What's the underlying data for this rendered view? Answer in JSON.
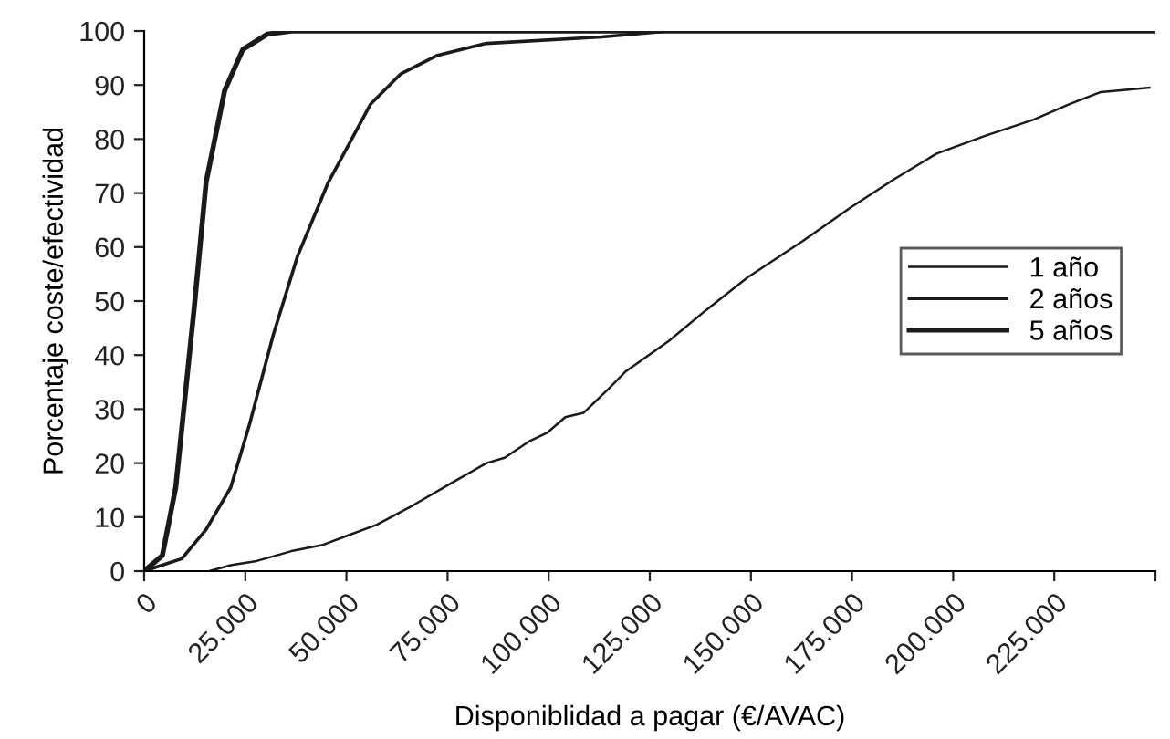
{
  "chart_data": {
    "type": "line",
    "xlabel": "Disponiblidad a pagar (€/AVAC)",
    "ylabel": "Porcentaje coste/efectividad",
    "xlim": [
      0,
      250000
    ],
    "ylim": [
      0,
      100
    ],
    "xticks": [
      {
        "value": 0,
        "label": "0"
      },
      {
        "value": 25000,
        "label": "25.000"
      },
      {
        "value": 50000,
        "label": "50.000"
      },
      {
        "value": 75000,
        "label": "75.000"
      },
      {
        "value": 100000,
        "label": "100.000"
      },
      {
        "value": 125000,
        "label": "125.000"
      },
      {
        "value": 150000,
        "label": "150.000"
      },
      {
        "value": 175000,
        "label": "175.000"
      },
      {
        "value": 200000,
        "label": "200.000"
      },
      {
        "value": 225000,
        "label": "225.000"
      },
      {
        "value": 250000,
        "label": null
      }
    ],
    "yticks": [
      0,
      10,
      20,
      30,
      40,
      50,
      60,
      70,
      80,
      90,
      100
    ],
    "grid": false,
    "legend": "right",
    "marker": "none",
    "line_style": "solid",
    "series": [
      {
        "name": "1 año",
        "color": "#1a1a1a",
        "x": [
          16100,
          21400,
          27400,
          36400,
          43900,
          50000,
          57500,
          66500,
          75500,
          84600,
          89100,
          95100,
          99600,
          104100,
          108600,
          114600,
          119100,
          129700,
          138700,
          149200,
          162800,
          174800,
          185300,
          195900,
          207900,
          219900,
          228900,
          236500,
          248500
        ],
        "values": [
          0,
          1.1,
          1.8,
          3.7,
          4.8,
          6.5,
          8.6,
          12.2,
          16.1,
          20,
          21,
          24,
          25.6,
          28.5,
          29.3,
          33.6,
          37,
          42.6,
          48.2,
          54.4,
          61.1,
          67.4,
          72.5,
          77.3,
          80.6,
          83.6,
          86.5,
          88.7,
          89.5
        ]
      },
      {
        "name": "2 años",
        "color": "#1a1a1a",
        "x": [
          0,
          9300,
          15300,
          21400,
          25900,
          31900,
          37900,
          45400,
          56000,
          63500,
          72500,
          84600,
          113100,
          129800,
          250000
        ],
        "values": [
          0,
          2.3,
          7.7,
          15.5,
          26.8,
          43.7,
          58.3,
          71.8,
          86.5,
          92.1,
          95.5,
          97.7,
          98.9,
          100,
          100
        ]
      },
      {
        "name": "5 años",
        "color": "#1a1a1a",
        "x": [
          0,
          4500,
          7800,
          12400,
          15300,
          19900,
          24400,
          30400,
          36400,
          250000
        ],
        "values": [
          0,
          2.9,
          15.5,
          49,
          72,
          89,
          96.6,
          99.4,
          100,
          100
        ]
      }
    ]
  }
}
